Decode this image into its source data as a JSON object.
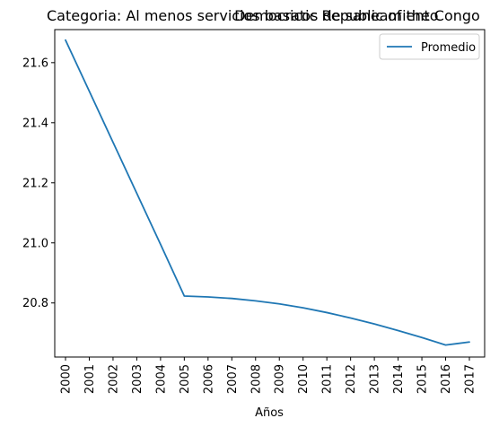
{
  "chart_data": {
    "type": "line",
    "title_left": "Categoria: Al menos servicios basicos de saneamiento",
    "title_center": "Democratic Republic of the Congo",
    "xlabel": "Años",
    "ylabel": "",
    "x": [
      "2000",
      "2001",
      "2002",
      "2003",
      "2004",
      "2005",
      "2006",
      "2007",
      "2008",
      "2009",
      "2010",
      "2011",
      "2012",
      "2013",
      "2014",
      "2015",
      "2016",
      "2017"
    ],
    "yticks": [
      20.8,
      21.0,
      21.2,
      21.4,
      21.6
    ],
    "ylim": [
      20.62,
      21.71
    ],
    "grid": false,
    "legend_position": "top-right",
    "series": [
      {
        "name": "Promedio",
        "color": "#1f77b4",
        "values": [
          21.675,
          21.505,
          21.335,
          21.165,
          20.995,
          20.823,
          20.82,
          20.815,
          20.807,
          20.797,
          20.784,
          20.768,
          20.75,
          20.73,
          20.708,
          20.685,
          20.66,
          20.67
        ]
      }
    ]
  }
}
